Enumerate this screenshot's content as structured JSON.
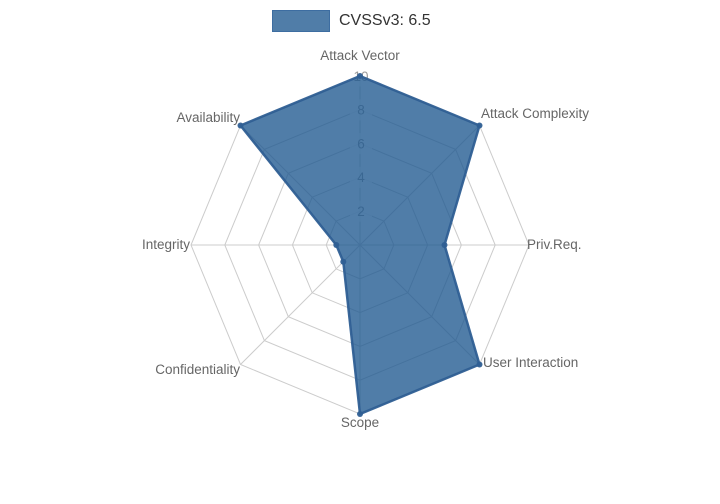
{
  "chart_data": {
    "type": "radar",
    "title": "",
    "legend_position": "top-center",
    "categories": [
      "Attack Vector",
      "Attack Complexity",
      "Priv.Req.",
      "User Interaction",
      "Scope",
      "Confidentiality",
      "Integrity",
      "Availability"
    ],
    "series": [
      {
        "name": "CVSSv3: 6.5",
        "values": [
          10,
          10,
          5,
          10,
          10,
          1.4,
          1.4,
          10
        ]
      }
    ],
    "rlim": [
      0,
      10
    ],
    "radial_ticks": [
      "2",
      "4",
      "6",
      "8",
      "10"
    ],
    "grid": true,
    "colors": {
      "fill": "#1f5890",
      "fill_opacity": "0.78",
      "stroke": "#2f5f94",
      "point": "#2f5f94",
      "grid_line": "#cccccc",
      "tick_text": "#999999",
      "tick_backdrop": "rgba(255,255,255,0.75)",
      "axis_label": "#666666",
      "legend_text": "#333333",
      "legend_swatch_fill": "#507da8",
      "legend_swatch_border": "#3d6da1",
      "background": "#ffffff"
    }
  }
}
